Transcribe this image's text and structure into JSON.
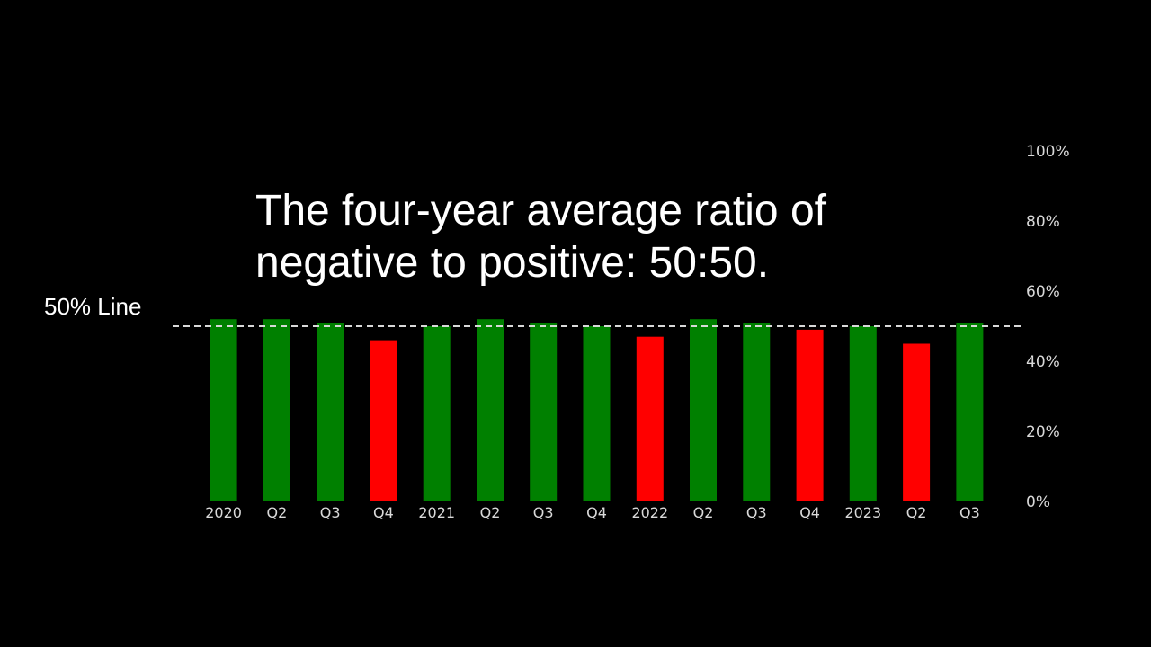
{
  "slide": {
    "headline_line1": "The four-year average ratio of",
    "headline_line2": "negative to positive: 50:50.",
    "reference_label": "50% Line"
  },
  "chart_data": {
    "type": "bar",
    "categories": [
      "2020",
      "Q2",
      "Q3",
      "Q4",
      "2021",
      "Q2",
      "Q3",
      "Q4",
      "2022",
      "Q2",
      "Q3",
      "Q4",
      "2023",
      "Q2",
      "Q3"
    ],
    "values": [
      52,
      52,
      51,
      46,
      50,
      52,
      51,
      50,
      47,
      52,
      51,
      49,
      50,
      45,
      51
    ],
    "bar_colors": [
      "#008000",
      "#008000",
      "#008000",
      "#ff0000",
      "#008000",
      "#008000",
      "#008000",
      "#008000",
      "#ff0000",
      "#008000",
      "#008000",
      "#ff0000",
      "#008000",
      "#ff0000",
      "#008000"
    ],
    "ylim": [
      0,
      100
    ],
    "yticks": [
      0,
      20,
      40,
      60,
      80,
      100
    ],
    "ytick_labels": [
      "0%",
      "20%",
      "40%",
      "60%",
      "80%",
      "100%"
    ],
    "y_axis_position": "right",
    "reference_line": {
      "value": 50,
      "style": "dashed",
      "color": "#d9d9d9"
    },
    "grid": false,
    "colors": {
      "positive": "#008000",
      "negative": "#ff0000",
      "text": "#ffffff",
      "background": "#000000"
    }
  }
}
